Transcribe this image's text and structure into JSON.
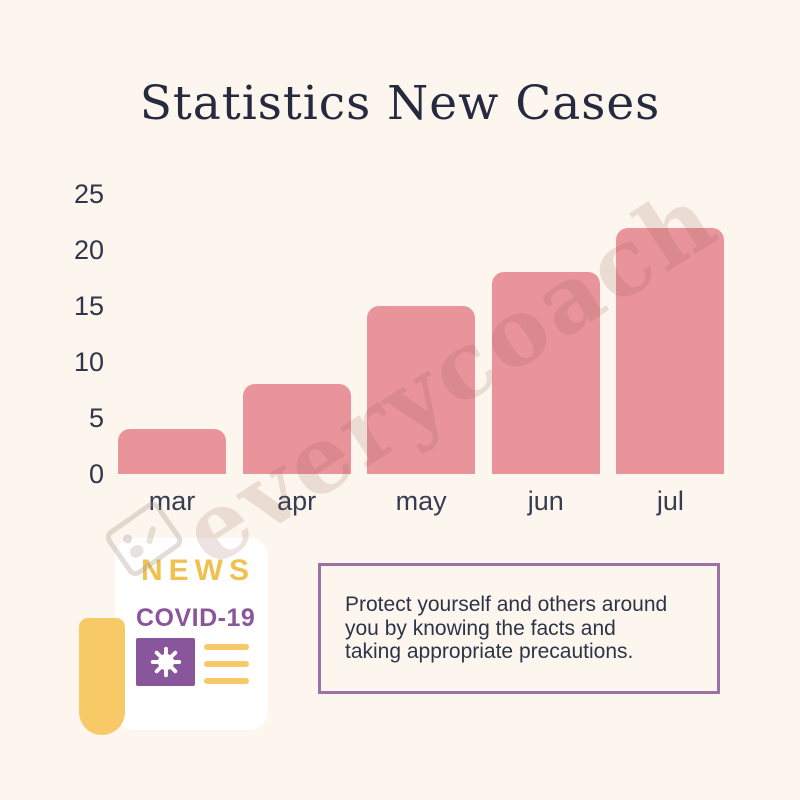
{
  "title": "Statistics New Cases",
  "chart_data": {
    "type": "bar",
    "title": "Statistics New Cases",
    "categories": [
      "mar",
      "apr",
      "may",
      "jun",
      "jul"
    ],
    "values": [
      4,
      8,
      15,
      18,
      22
    ],
    "yticks": [
      25,
      20,
      15,
      10,
      5,
      0
    ],
    "ylim": [
      0,
      25
    ],
    "xlabel": "",
    "ylabel": "",
    "grid": false,
    "legend": false,
    "bar_color": "#E9949B"
  },
  "watermark": {
    "text": "everycoach"
  },
  "newspaper": {
    "news_label": "NEWS",
    "covid_label": "COVID-19"
  },
  "callout": {
    "text": "Protect yourself and others around you by knowing the facts and taking appropriate precautions.",
    "lines": [
      "Protect yourself and others around",
      "you by knowing the facts and",
      "taking appropriate precautions."
    ]
  },
  "colors": {
    "background": "#FDF6EE",
    "bar": "#E9949B",
    "title_text": "#252A3F",
    "axis_text": "#30374B",
    "yellow": "#F8C967",
    "news_yellow": "#F1C14F",
    "purple": "#8A569B",
    "callout_border": "#9C72A6",
    "callout_text": "#2E3447"
  }
}
